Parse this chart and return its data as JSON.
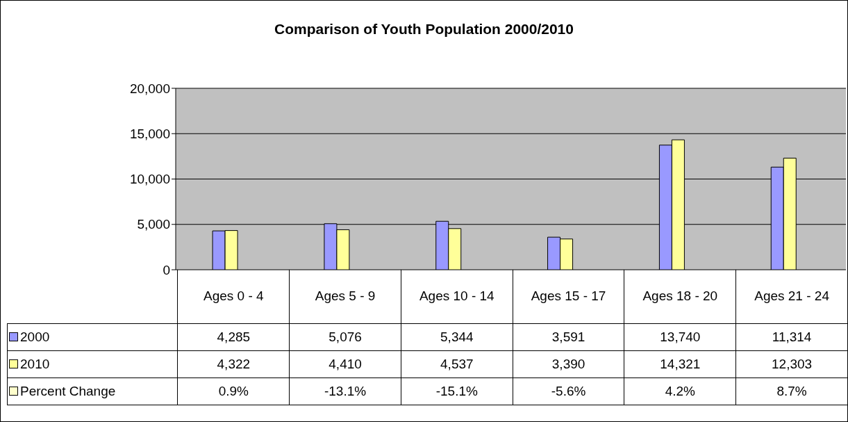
{
  "chart_data": {
    "type": "bar",
    "title": "Comparison of Youth Population 2000/2010",
    "categories": [
      "Ages 0 - 4",
      "Ages 5 - 9",
      "Ages 10 - 14",
      "Ages 15 - 17",
      "Ages 18 - 20",
      "Ages 21 - 24"
    ],
    "series": [
      {
        "name": "2000",
        "color": "#9999ff",
        "values": [
          4285,
          5076,
          5344,
          3591,
          13740,
          11314
        ],
        "value_labels": [
          "4,285",
          "5,076",
          "5,344",
          "3,591",
          "13,740",
          "11,314"
        ]
      },
      {
        "name": "2010",
        "color": "#ffff99",
        "values": [
          4322,
          4410,
          4537,
          3390,
          14321,
          12303
        ],
        "value_labels": [
          "4,322",
          "4,410",
          "4,537",
          "3,390",
          "14,321",
          "12,303"
        ]
      },
      {
        "name": "Percent Change",
        "color": "#ffffcc",
        "values": [
          null,
          null,
          null,
          null,
          null,
          null
        ],
        "value_labels": [
          "0.9%",
          "-13.1%",
          "-15.1%",
          "-5.6%",
          "4.2%",
          "8.7%"
        ]
      }
    ],
    "ylim": [
      0,
      20000
    ],
    "yticks": [
      {
        "value": 0,
        "label": "0"
      },
      {
        "value": 5000,
        "label": "5,000"
      },
      {
        "value": 10000,
        "label": "10,000"
      },
      {
        "value": 15000,
        "label": "15,000"
      },
      {
        "value": 20000,
        "label": "20,000"
      }
    ],
    "grid": "y",
    "legend": "bottom"
  }
}
